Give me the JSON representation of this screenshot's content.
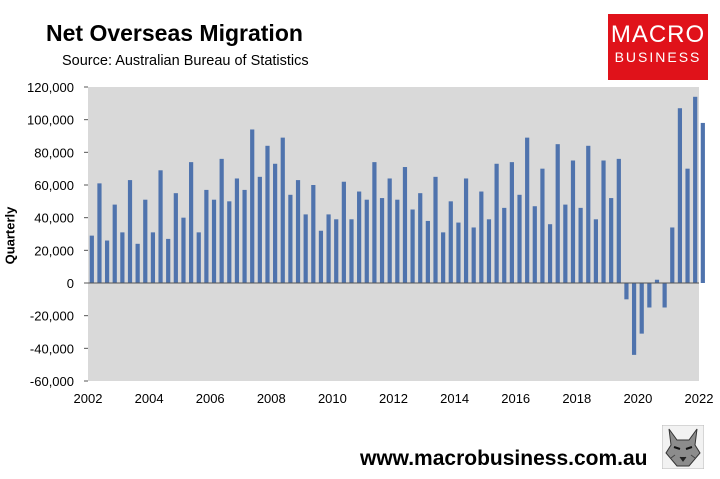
{
  "header": {
    "title": "Net Overseas Migration",
    "source": "Source: Australian Bureau of Statistics"
  },
  "logo": {
    "line1": "MACRO",
    "line2": "BUSINESS"
  },
  "footer": {
    "url": "www.macrobusiness.com.au",
    "mascot_icon": "wolf-icon"
  },
  "colors": {
    "bar": "#4f73ad",
    "plot_bg": "#d9d9d9",
    "brand": "#e0121a"
  },
  "chart_data": {
    "type": "bar",
    "title": "Net Overseas Migration",
    "xlabel": "",
    "ylabel": "Quarterly",
    "ylim": [
      -60000,
      120000
    ],
    "yticks": [
      120000,
      100000,
      80000,
      60000,
      40000,
      20000,
      0,
      -20000,
      -40000,
      -60000
    ],
    "ytick_labels": [
      "120,000",
      "100,000",
      "80,000",
      "60,000",
      "40,000",
      "20,000",
      "0",
      "-20,000",
      "-40,000",
      "-60,000"
    ],
    "xtick_labels": [
      "2002",
      "2004",
      "2006",
      "2008",
      "2010",
      "2012",
      "2014",
      "2016",
      "2018",
      "2020",
      "2022"
    ],
    "x_start": 2002,
    "x_end": 2022,
    "periods_per_year": 4,
    "series": [
      {
        "name": "Net Overseas Migration",
        "values": [
          29000,
          61000,
          26000,
          48000,
          31000,
          63000,
          24000,
          51000,
          31000,
          69000,
          27000,
          55000,
          40000,
          74000,
          31000,
          57000,
          51000,
          76000,
          50000,
          64000,
          57000,
          94000,
          65000,
          84000,
          73000,
          89000,
          54000,
          63000,
          42000,
          60000,
          32000,
          42000,
          39000,
          62000,
          39000,
          56000,
          51000,
          74000,
          52000,
          64000,
          51000,
          71000,
          45000,
          55000,
          38000,
          65000,
          31000,
          50000,
          37000,
          64000,
          34000,
          56000,
          39000,
          73000,
          46000,
          74000,
          54000,
          89000,
          47000,
          70000,
          36000,
          85000,
          48000,
          75000,
          46000,
          84000,
          39000,
          75000,
          52000,
          76000,
          -10000,
          -44000,
          -31000,
          -15000,
          2000,
          -15000,
          34000,
          107000,
          70000,
          114000,
          98000
        ]
      }
    ]
  }
}
